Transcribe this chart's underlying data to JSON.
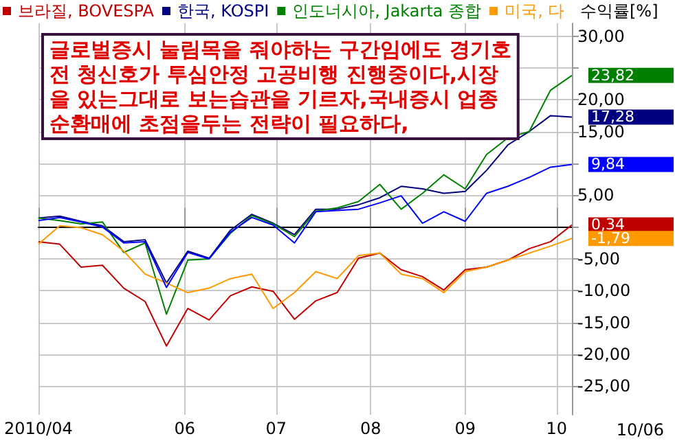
{
  "chart_data": {
    "type": "line",
    "ylabel": "수익률[%]",
    "annotations": [
      "10/06",
      "글로벌증시 눌림목을 줘야하는 구간임에도 경기호\n전 청신호가 투심안정 고공비행 진행중이다,시장\n을 있는그대로 보는습관을 기르자,국내증시 업종\n순환매에 초점을두는 전략이 필요하다,"
    ],
    "x": [
      "2010-04-14",
      "2010-04-21",
      "2010-04-28",
      "2010-05-05",
      "2010-05-12",
      "2010-05-19",
      "2010-05-26",
      "2010-06-02",
      "2010-06-09",
      "2010-06-16",
      "2010-06-23",
      "2010-06-30",
      "2010-07-07",
      "2010-07-14",
      "2010-07-21",
      "2010-07-28",
      "2010-08-04",
      "2010-08-11",
      "2010-08-18",
      "2010-08-25",
      "2010-09-01",
      "2010-09-08",
      "2010-09-15",
      "2010-09-22",
      "2010-09-29",
      "2010-10-06"
    ],
    "series": [
      {
        "name": "브라질, BOVESPA",
        "color": "#c00000",
        "values": [
          -2.3,
          -2.7,
          -6.3,
          -6.0,
          -9.6,
          -11.7,
          -18.7,
          -12.8,
          -14.6,
          -10.8,
          -9.4,
          -10.1,
          -14.5,
          -11.6,
          -10.3,
          -4.9,
          -4.1,
          -6.7,
          -7.8,
          -9.9,
          -6.7,
          -6.3,
          -5.2,
          -3.4,
          -2.3,
          0.34
        ],
        "value_labels": [
          null,
          null,
          null,
          null,
          null,
          null,
          null,
          null,
          null,
          null,
          null,
          null,
          null,
          null,
          null,
          null,
          null,
          null,
          null,
          null,
          null,
          null,
          null,
          null,
          null,
          "0,34"
        ]
      },
      {
        "name": "한국, KOSPI",
        "color": "#000080",
        "values": [
          1.4,
          1.7,
          0.9,
          0.2,
          -2.3,
          -2.0,
          -8.8,
          -3.8,
          -4.9,
          -0.5,
          2.0,
          0.6,
          -1.2,
          2.8,
          2.8,
          3.5,
          4.6,
          6.4,
          6.0,
          5.3,
          5.6,
          8.9,
          12.9,
          15.0,
          17.5,
          17.28
        ],
        "value_labels": [
          null,
          null,
          null,
          null,
          null,
          null,
          null,
          null,
          null,
          null,
          null,
          null,
          null,
          null,
          null,
          null,
          null,
          null,
          null,
          null,
          null,
          null,
          null,
          null,
          null,
          "17,28"
        ]
      },
      {
        "name": "인도너시아, Jakarta 종합",
        "color": "#008000",
        "values": [
          1.4,
          1.0,
          0.5,
          0.8,
          -4.0,
          -2.5,
          -13.7,
          -5.2,
          -5.0,
          -1.0,
          1.8,
          0.5,
          -1.5,
          2.5,
          3.0,
          4.0,
          6.7,
          2.8,
          5.3,
          8.2,
          6.0,
          11.4,
          14.0,
          15.0,
          21.5,
          23.82
        ],
        "value_labels": [
          null,
          null,
          null,
          null,
          null,
          null,
          null,
          null,
          null,
          null,
          null,
          null,
          null,
          null,
          null,
          null,
          null,
          null,
          null,
          null,
          null,
          null,
          null,
          null,
          null,
          "23,82"
        ]
      },
      {
        "name": "미국, 다",
        "color": "#ff9900",
        "values": [
          -2.7,
          0.2,
          -0.1,
          -1.2,
          -3.8,
          -7.4,
          -8.8,
          -10.3,
          -9.6,
          -8.1,
          -7.4,
          -12.8,
          -10.3,
          -7.0,
          -8.1,
          -4.5,
          -4.1,
          -7.4,
          -8.1,
          -10.3,
          -7.0,
          -6.3,
          -5.2,
          -4.1,
          -3.0,
          -1.79
        ],
        "value_labels": [
          null,
          null,
          null,
          null,
          null,
          null,
          null,
          null,
          null,
          null,
          null,
          null,
          null,
          null,
          null,
          null,
          null,
          null,
          null,
          null,
          null,
          null,
          null,
          null,
          null,
          "-1,79"
        ]
      },
      {
        "color": "#0000ff",
        "values": [
          1.0,
          1.5,
          0.8,
          0.0,
          -2.5,
          -2.3,
          -9.5,
          -4.0,
          -5.0,
          -0.8,
          1.5,
          0.3,
          -2.5,
          2.4,
          2.6,
          2.8,
          3.8,
          4.9,
          0.6,
          2.4,
          0.9,
          5.3,
          6.4,
          7.8,
          9.4,
          9.84
        ],
        "value_labels": [
          null,
          null,
          null,
          null,
          null,
          null,
          null,
          null,
          null,
          null,
          null,
          null,
          null,
          null,
          null,
          null,
          null,
          null,
          null,
          null,
          null,
          null,
          null,
          null,
          null,
          "9,84"
        ]
      }
    ],
    "xlim": [
      "2010-04-14",
      "2010-10-06"
    ],
    "xticks": [
      {
        "value": "2010-04-14",
        "label": "2010/04"
      },
      {
        "value": "2010-06-01",
        "label": "06"
      },
      {
        "value": "2010-07-01",
        "label": "07"
      },
      {
        "value": "2010-08-01",
        "label": "08"
      },
      {
        "value": "2010-09-01",
        "label": "09"
      },
      {
        "value": "2010-10-01",
        "label": "10"
      }
    ],
    "ylim": [
      -29.5,
      32
    ],
    "yticks": [
      {
        "value": 30,
        "label": "30,00"
      },
      {
        "value": 25,
        "label": null
      },
      {
        "value": 20,
        "label": "20,00"
      },
      {
        "value": 15,
        "label": "15,00"
      },
      {
        "value": 10,
        "label": null
      },
      {
        "value": 5,
        "label": "5,00"
      },
      {
        "value": 0,
        "label": null
      },
      {
        "value": -5,
        "label": "-5,00"
      },
      {
        "value": -10,
        "label": "-10,00"
      },
      {
        "value": -15,
        "label": "-15,00"
      },
      {
        "value": -20,
        "label": "-20,00"
      },
      {
        "value": -25,
        "label": "-25,00"
      }
    ],
    "grid": true,
    "legend": "top left",
    "marker": "none",
    "line_style": "solid"
  }
}
